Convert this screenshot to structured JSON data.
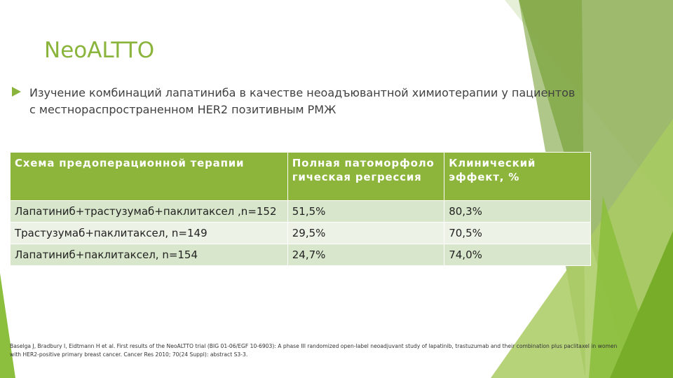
{
  "title": "NeoALTTO",
  "bullet": "Изучение комбинаций лапатиниба в качестве неоадъювантной химиотерапии у пациентов с местнораспространенном HER2 позитивным РМЖ",
  "table": {
    "header": [
      "Схема предоперационной терапии",
      "Полная патоморфологическая регрессия",
      "Клинический эффект, %"
    ],
    "rows": [
      [
        "Лапатиниб+трастузумаб+паклитаксел ,n=152",
        "51,5%",
        "80,3%"
      ],
      [
        "Трастузумаб+паклитаксел, n=149",
        "29,5%",
        "70,5%"
      ],
      [
        "Лапатиниб+паклитаксел, n=154",
        "24,7%",
        "74,0%"
      ]
    ]
  },
  "reference": "Baselga J, Bradbury I, Eidtmann H et al. First results of the NeoALTTO trial (BIG 01-06/EGF 10-6903): A phase III randomized open-label neoadjuvant study of lapatinib, trastuzumab and their combination plus paclitaxel in women with HER2-positive primary breast cancer. Cancer Res 2010; 70(24 Suppl): abstract S3-3."
}
